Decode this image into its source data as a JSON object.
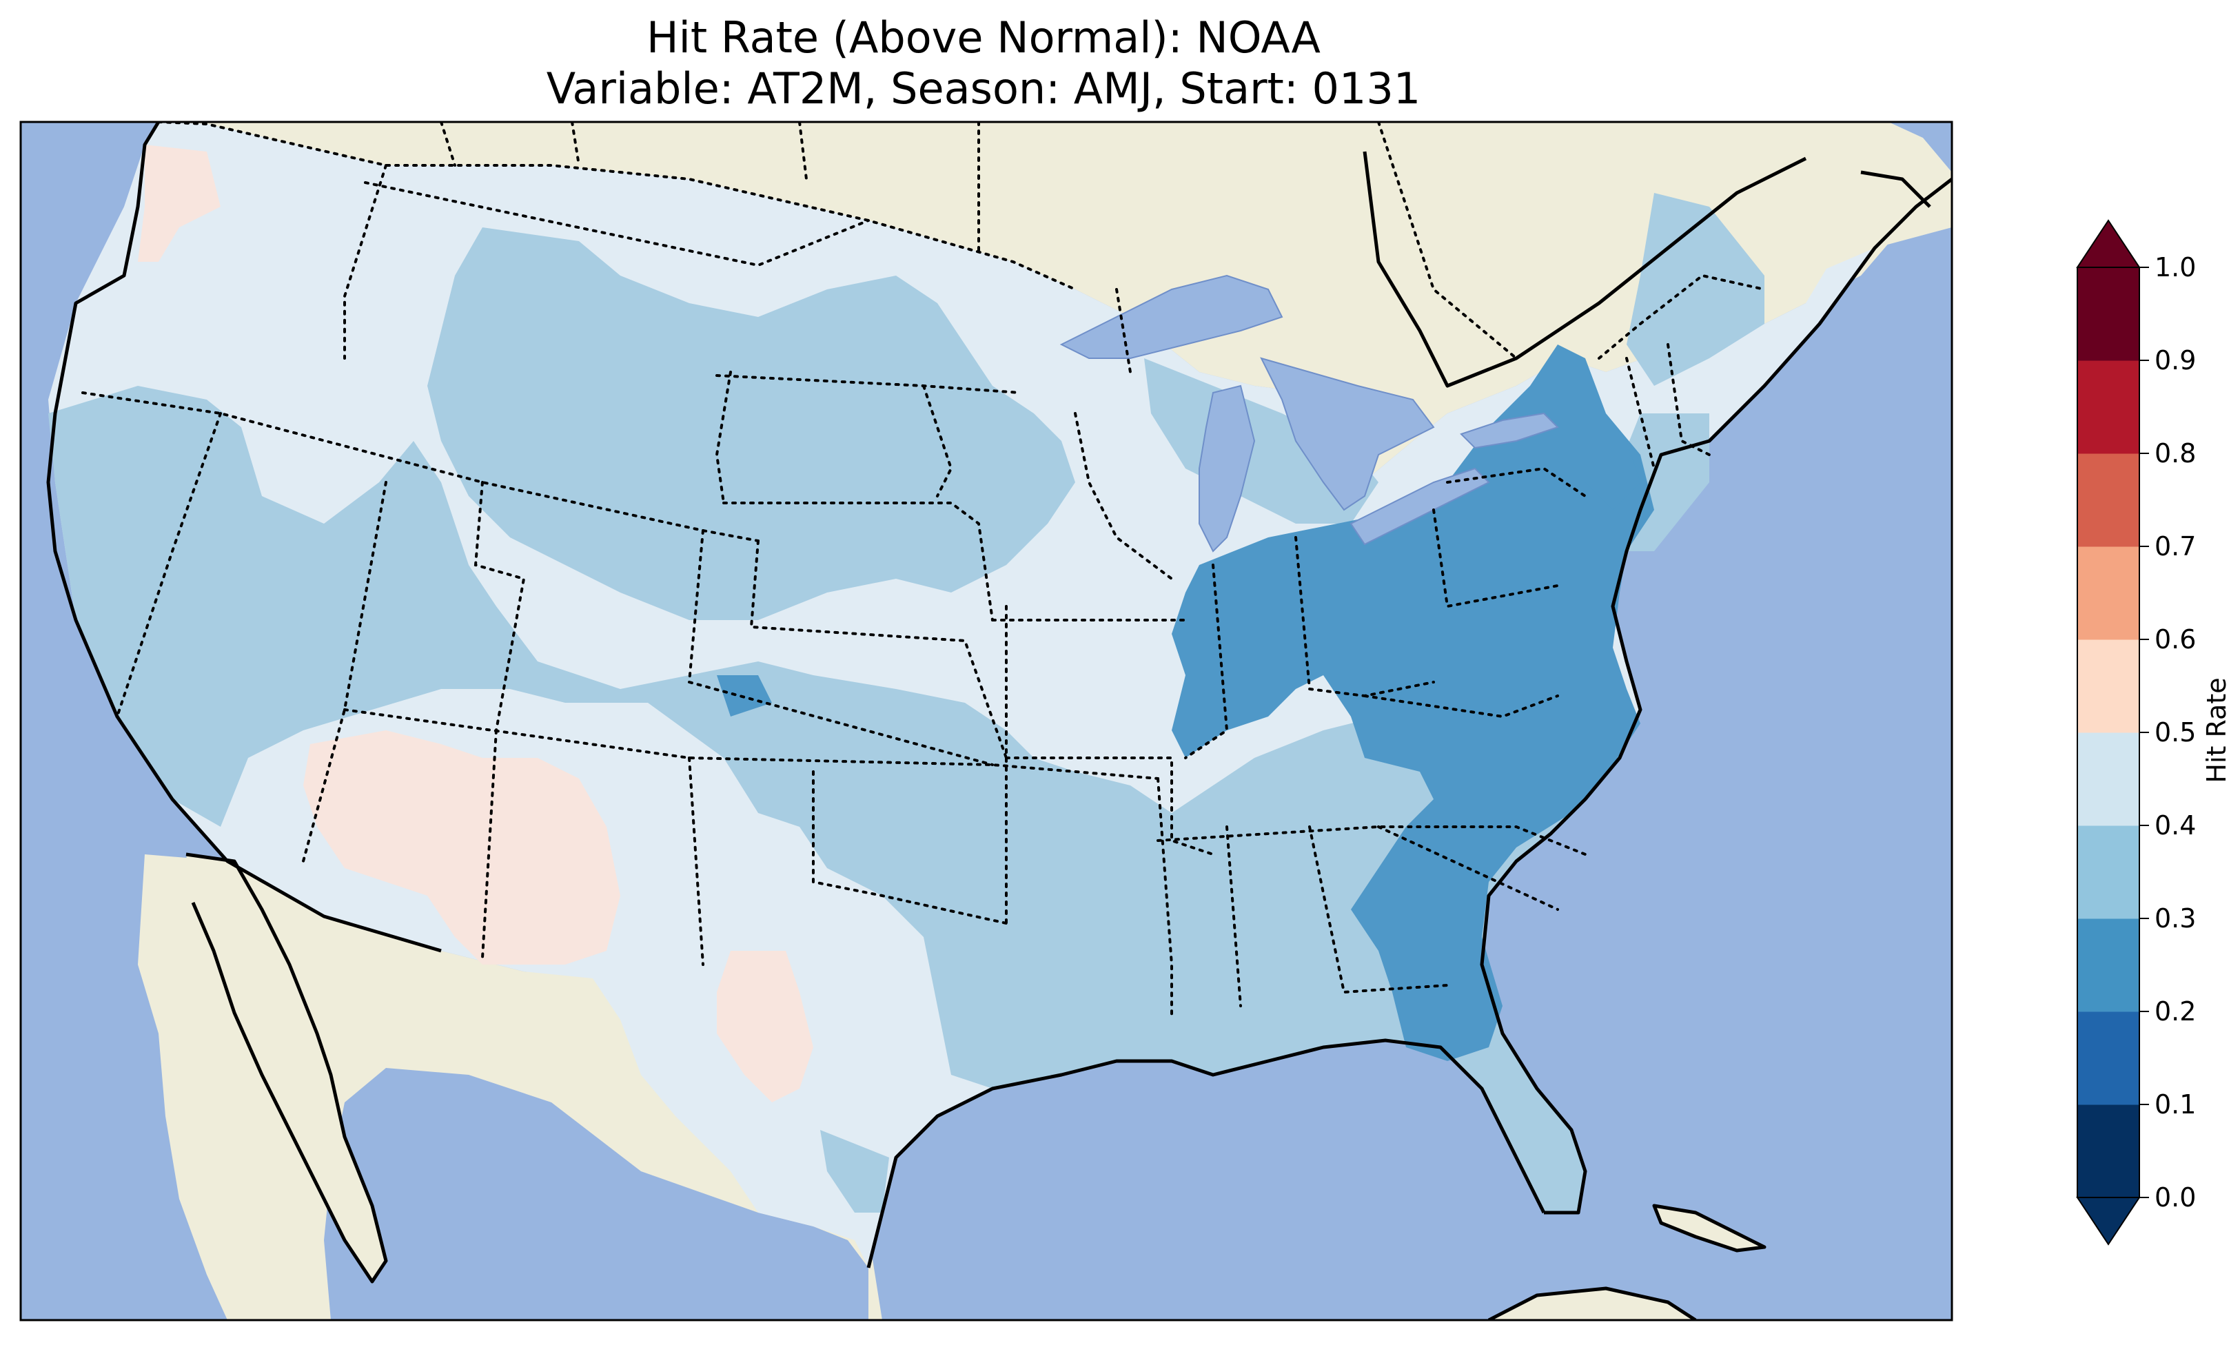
{
  "title_line1": "Hit Rate (Above Normal): NOAA",
  "title_line2": "Variable: AT2M, Season: AMJ, Start: 0131",
  "colorbar": {
    "label": "Hit Rate",
    "ticks": [
      "0.0",
      "0.1",
      "0.2",
      "0.3",
      "0.4",
      "0.5",
      "0.6",
      "0.7",
      "0.8",
      "0.9",
      "1.0"
    ],
    "colors": [
      "#053061",
      "#2166ac",
      "#4393c3",
      "#92c5de",
      "#d1e5f0",
      "#fddbc7",
      "#f4a582",
      "#d6604d",
      "#b2182b",
      "#67001f"
    ],
    "extend": "both"
  },
  "colors": {
    "ocean": "#98b5e0",
    "land": "#efedda",
    "bin_0_2_0_3": "#4f98c8",
    "bin_0_3_0_4": "#a8cde2",
    "bin_0_4_0_5": "#e1ecf4",
    "bin_0_5_0_6": "#f8e5de"
  }
}
